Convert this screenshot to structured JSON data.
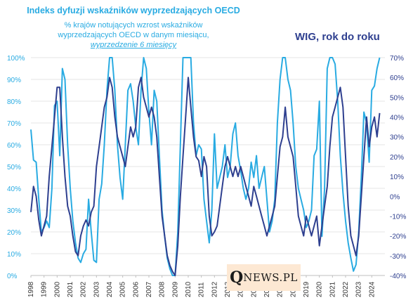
{
  "header": {
    "title_left": "Indeks dyfuzji wskaźników wyprzedzających OECD",
    "subtitle_line1": "% krajów notujących wzrost wskaźników",
    "subtitle_line2": "wyprzedzających OECD w danym miesiącu,",
    "subtitle_line3": "wyprzedzenie  6 miesięcy",
    "title_right": "WIG, rok do roku"
  },
  "watermark": {
    "q": "Q",
    "rest": "NEWS.PL"
  },
  "colors": {
    "diffusion": "#29abe2",
    "wig": "#2e3f8f",
    "left_axis_text": "#29abe2",
    "right_axis_text": "#2e3f8f",
    "grid": "#e6e6e6"
  },
  "chart_data": {
    "type": "line",
    "title": "",
    "xlabel": "",
    "ylabel_left": "",
    "ylabel_right": "",
    "x_tick_labels": [
      "1998",
      "1999",
      "2000",
      "2001",
      "2002",
      "2003",
      "2004",
      "2005",
      "2006",
      "2007",
      "2008",
      "2009",
      "2010",
      "2011",
      "2012",
      "2013",
      "2014",
      "2015",
      "2016",
      "2017",
      "2018",
      "2019",
      "2020",
      "2021",
      "2022",
      "2023",
      "2024"
    ],
    "y_left_ticks": [
      "0%",
      "10%",
      "20%",
      "30%",
      "40%",
      "50%",
      "60%",
      "70%",
      "80%",
      "90%",
      "100%"
    ],
    "y_right_ticks": [
      "-40%",
      "-30%",
      "-20%",
      "-10%",
      "0%",
      "10%",
      "20%",
      "30%",
      "40%",
      "50%",
      "60%",
      "70%"
    ],
    "ylim_left": [
      0,
      100
    ],
    "ylim_right": [
      -40,
      70
    ],
    "grid": true,
    "series": [
      {
        "name": "Indeks dyfuzji wskaźników wyprzedzających OECD",
        "axis": "left",
        "points": [
          [
            1998.0,
            67
          ],
          [
            1998.2,
            53
          ],
          [
            1998.4,
            52
          ],
          [
            1998.6,
            35
          ],
          [
            1998.8,
            20
          ],
          [
            1999.0,
            22
          ],
          [
            1999.2,
            25
          ],
          [
            1999.4,
            22
          ],
          [
            1999.6,
            40
          ],
          [
            1999.8,
            78
          ],
          [
            2000.0,
            80
          ],
          [
            2000.2,
            55
          ],
          [
            2000.4,
            95
          ],
          [
            2000.6,
            90
          ],
          [
            2000.8,
            60
          ],
          [
            2001.0,
            40
          ],
          [
            2001.2,
            25
          ],
          [
            2001.4,
            15
          ],
          [
            2001.6,
            8
          ],
          [
            2001.8,
            6
          ],
          [
            2002.0,
            10
          ],
          [
            2002.2,
            12
          ],
          [
            2002.4,
            35
          ],
          [
            2002.6,
            20
          ],
          [
            2002.8,
            7
          ],
          [
            2003.0,
            6
          ],
          [
            2003.2,
            35
          ],
          [
            2003.4,
            42
          ],
          [
            2003.6,
            60
          ],
          [
            2003.8,
            85
          ],
          [
            2004.0,
            100
          ],
          [
            2004.2,
            100
          ],
          [
            2004.4,
            85
          ],
          [
            2004.6,
            60
          ],
          [
            2004.8,
            45
          ],
          [
            2005.0,
            35
          ],
          [
            2005.2,
            60
          ],
          [
            2005.4,
            85
          ],
          [
            2005.6,
            88
          ],
          [
            2005.8,
            80
          ],
          [
            2006.0,
            68
          ],
          [
            2006.2,
            60
          ],
          [
            2006.4,
            85
          ],
          [
            2006.6,
            100
          ],
          [
            2006.8,
            95
          ],
          [
            2007.0,
            75
          ],
          [
            2007.2,
            60
          ],
          [
            2007.4,
            85
          ],
          [
            2007.6,
            80
          ],
          [
            2007.8,
            55
          ],
          [
            2008.0,
            30
          ],
          [
            2008.2,
            18
          ],
          [
            2008.4,
            8
          ],
          [
            2008.6,
            3
          ],
          [
            2008.8,
            0
          ],
          [
            2009.0,
            0
          ],
          [
            2009.2,
            20
          ],
          [
            2009.4,
            60
          ],
          [
            2009.6,
            100
          ],
          [
            2009.8,
            100
          ],
          [
            2010.0,
            100
          ],
          [
            2010.2,
            100
          ],
          [
            2010.4,
            70
          ],
          [
            2010.6,
            55
          ],
          [
            2010.8,
            60
          ],
          [
            2011.0,
            58
          ],
          [
            2011.2,
            35
          ],
          [
            2011.4,
            25
          ],
          [
            2011.6,
            15
          ],
          [
            2011.8,
            30
          ],
          [
            2012.0,
            65
          ],
          [
            2012.2,
            40
          ],
          [
            2012.4,
            45
          ],
          [
            2012.6,
            50
          ],
          [
            2012.8,
            60
          ],
          [
            2013.0,
            45
          ],
          [
            2013.2,
            50
          ],
          [
            2013.4,
            65
          ],
          [
            2013.6,
            70
          ],
          [
            2013.8,
            55
          ],
          [
            2014.0,
            48
          ],
          [
            2014.2,
            40
          ],
          [
            2014.4,
            35
          ],
          [
            2014.6,
            40
          ],
          [
            2014.8,
            52
          ],
          [
            2015.0,
            45
          ],
          [
            2015.2,
            55
          ],
          [
            2015.4,
            40
          ],
          [
            2015.6,
            45
          ],
          [
            2015.8,
            50
          ],
          [
            2016.0,
            35
          ],
          [
            2016.2,
            20
          ],
          [
            2016.4,
            25
          ],
          [
            2016.6,
            35
          ],
          [
            2016.8,
            70
          ],
          [
            2017.0,
            90
          ],
          [
            2017.2,
            100
          ],
          [
            2017.4,
            100
          ],
          [
            2017.6,
            90
          ],
          [
            2017.8,
            85
          ],
          [
            2018.0,
            70
          ],
          [
            2018.2,
            50
          ],
          [
            2018.4,
            40
          ],
          [
            2018.6,
            35
          ],
          [
            2018.8,
            30
          ],
          [
            2019.0,
            22
          ],
          [
            2019.2,
            25
          ],
          [
            2019.4,
            30
          ],
          [
            2019.6,
            55
          ],
          [
            2019.8,
            58
          ],
          [
            2020.0,
            80
          ],
          [
            2020.2,
            18
          ],
          [
            2020.4,
            40
          ],
          [
            2020.6,
            95
          ],
          [
            2020.8,
            100
          ],
          [
            2021.0,
            100
          ],
          [
            2021.2,
            97
          ],
          [
            2021.4,
            80
          ],
          [
            2021.6,
            55
          ],
          [
            2021.8,
            38
          ],
          [
            2022.0,
            25
          ],
          [
            2022.2,
            15
          ],
          [
            2022.4,
            8
          ],
          [
            2022.6,
            2
          ],
          [
            2022.8,
            5
          ],
          [
            2023.0,
            20
          ],
          [
            2023.2,
            45
          ],
          [
            2023.4,
            75
          ],
          [
            2023.6,
            70
          ],
          [
            2023.8,
            52
          ],
          [
            2024.0,
            85
          ],
          [
            2024.2,
            87
          ],
          [
            2024.4,
            95
          ],
          [
            2024.6,
            100
          ]
        ]
      },
      {
        "name": "WIG, rok do roku",
        "axis": "right",
        "points": [
          [
            1998.0,
            -8
          ],
          [
            1998.2,
            5
          ],
          [
            1998.4,
            0
          ],
          [
            1998.6,
            -12
          ],
          [
            1998.8,
            -20
          ],
          [
            1999.0,
            -15
          ],
          [
            1999.2,
            -10
          ],
          [
            1999.4,
            10
          ],
          [
            1999.6,
            25
          ],
          [
            1999.8,
            40
          ],
          [
            2000.0,
            55
          ],
          [
            2000.2,
            55
          ],
          [
            2000.4,
            30
          ],
          [
            2000.6,
            10
          ],
          [
            2000.8,
            -5
          ],
          [
            2001.0,
            -10
          ],
          [
            2001.2,
            -20
          ],
          [
            2001.4,
            -28
          ],
          [
            2001.6,
            -30
          ],
          [
            2001.8,
            -20
          ],
          [
            2002.0,
            -15
          ],
          [
            2002.2,
            -12
          ],
          [
            2002.4,
            -15
          ],
          [
            2002.6,
            -8
          ],
          [
            2002.8,
            -5
          ],
          [
            2003.0,
            15
          ],
          [
            2003.2,
            25
          ],
          [
            2003.4,
            35
          ],
          [
            2003.6,
            45
          ],
          [
            2003.8,
            50
          ],
          [
            2004.0,
            60
          ],
          [
            2004.2,
            55
          ],
          [
            2004.4,
            40
          ],
          [
            2004.6,
            30
          ],
          [
            2004.8,
            25
          ],
          [
            2005.0,
            20
          ],
          [
            2005.2,
            15
          ],
          [
            2005.4,
            25
          ],
          [
            2005.6,
            35
          ],
          [
            2005.8,
            30
          ],
          [
            2006.0,
            35
          ],
          [
            2006.2,
            55
          ],
          [
            2006.4,
            60
          ],
          [
            2006.6,
            50
          ],
          [
            2006.8,
            45
          ],
          [
            2007.0,
            40
          ],
          [
            2007.2,
            45
          ],
          [
            2007.4,
            40
          ],
          [
            2007.6,
            30
          ],
          [
            2007.8,
            10
          ],
          [
            2008.0,
            -10
          ],
          [
            2008.2,
            -20
          ],
          [
            2008.4,
            -30
          ],
          [
            2008.6,
            -35
          ],
          [
            2008.8,
            -38
          ],
          [
            2009.0,
            -40
          ],
          [
            2009.2,
            -25
          ],
          [
            2009.4,
            0
          ],
          [
            2009.6,
            20
          ],
          [
            2009.8,
            40
          ],
          [
            2010.0,
            60
          ],
          [
            2010.2,
            45
          ],
          [
            2010.4,
            30
          ],
          [
            2010.6,
            20
          ],
          [
            2010.8,
            18
          ],
          [
            2011.0,
            10
          ],
          [
            2011.2,
            20
          ],
          [
            2011.4,
            15
          ],
          [
            2011.6,
            -10
          ],
          [
            2011.8,
            -20
          ],
          [
            2012.0,
            -18
          ],
          [
            2012.2,
            -15
          ],
          [
            2012.4,
            -5
          ],
          [
            2012.6,
            5
          ],
          [
            2012.8,
            15
          ],
          [
            2013.0,
            20
          ],
          [
            2013.2,
            15
          ],
          [
            2013.4,
            10
          ],
          [
            2013.6,
            15
          ],
          [
            2013.8,
            10
          ],
          [
            2014.0,
            15
          ],
          [
            2014.2,
            10
          ],
          [
            2014.4,
            5
          ],
          [
            2014.6,
            0
          ],
          [
            2014.8,
            -5
          ],
          [
            2015.0,
            5
          ],
          [
            2015.2,
            0
          ],
          [
            2015.4,
            -5
          ],
          [
            2015.6,
            -10
          ],
          [
            2015.8,
            -15
          ],
          [
            2016.0,
            -20
          ],
          [
            2016.2,
            -15
          ],
          [
            2016.4,
            -10
          ],
          [
            2016.6,
            -5
          ],
          [
            2016.8,
            10
          ],
          [
            2017.0,
            25
          ],
          [
            2017.2,
            30
          ],
          [
            2017.4,
            45
          ],
          [
            2017.6,
            30
          ],
          [
            2017.8,
            25
          ],
          [
            2018.0,
            20
          ],
          [
            2018.2,
            5
          ],
          [
            2018.4,
            -10
          ],
          [
            2018.6,
            -15
          ],
          [
            2018.8,
            -20
          ],
          [
            2019.0,
            -10
          ],
          [
            2019.2,
            -15
          ],
          [
            2019.4,
            -20
          ],
          [
            2019.6,
            -15
          ],
          [
            2019.8,
            -10
          ],
          [
            2020.0,
            -25
          ],
          [
            2020.2,
            -15
          ],
          [
            2020.4,
            -5
          ],
          [
            2020.6,
            5
          ],
          [
            2020.8,
            25
          ],
          [
            2021.0,
            40
          ],
          [
            2021.2,
            45
          ],
          [
            2021.4,
            50
          ],
          [
            2021.6,
            55
          ],
          [
            2021.8,
            45
          ],
          [
            2022.0,
            20
          ],
          [
            2022.2,
            -5
          ],
          [
            2022.4,
            -20
          ],
          [
            2022.6,
            -25
          ],
          [
            2022.8,
            -30
          ],
          [
            2023.0,
            -20
          ],
          [
            2023.2,
            0
          ],
          [
            2023.4,
            20
          ],
          [
            2023.6,
            40
          ],
          [
            2023.8,
            25
          ],
          [
            2024.0,
            35
          ],
          [
            2024.2,
            40
          ],
          [
            2024.4,
            30
          ],
          [
            2024.6,
            42
          ]
        ]
      }
    ]
  }
}
